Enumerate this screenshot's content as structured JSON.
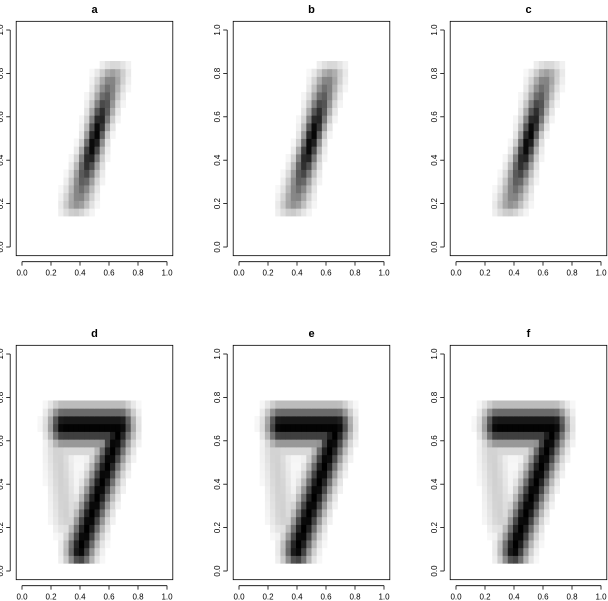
{
  "chart_data": [
    {
      "type": "heatmap",
      "title": "a",
      "digit": "1",
      "xlim": [
        0,
        1
      ],
      "ylim": [
        0,
        1
      ],
      "x_ticks": [
        "0.0",
        "0.2",
        "0.4",
        "0.6",
        "0.8",
        "1.0"
      ],
      "y_ticks": [
        "0.0",
        "0.2",
        "0.4",
        "0.6",
        "0.8",
        "1.0"
      ]
    },
    {
      "type": "heatmap",
      "title": "b",
      "digit": "1",
      "xlim": [
        0,
        1
      ],
      "ylim": [
        0,
        1
      ],
      "x_ticks": [
        "0.0",
        "0.2",
        "0.4",
        "0.6",
        "0.8",
        "1.0"
      ],
      "y_ticks": [
        "0.0",
        "0.2",
        "0.4",
        "0.6",
        "0.8",
        "1.0"
      ]
    },
    {
      "type": "heatmap",
      "title": "c",
      "digit": "1",
      "xlim": [
        0,
        1
      ],
      "ylim": [
        0,
        1
      ],
      "x_ticks": [
        "0.0",
        "0.2",
        "0.4",
        "0.6",
        "0.8",
        "1.0"
      ],
      "y_ticks": [
        "0.0",
        "0.2",
        "0.4",
        "0.6",
        "0.8",
        "1.0"
      ]
    },
    {
      "type": "heatmap",
      "title": "d",
      "digit": "7",
      "xlim": [
        0,
        1
      ],
      "ylim": [
        0,
        1
      ],
      "x_ticks": [
        "0.0",
        "0.2",
        "0.4",
        "0.6",
        "0.8",
        "1.0"
      ],
      "y_ticks": [
        "0.0",
        "0.2",
        "0.4",
        "0.6",
        "0.8",
        "1.0"
      ]
    },
    {
      "type": "heatmap",
      "title": "e",
      "digit": "7",
      "xlim": [
        0,
        1
      ],
      "ylim": [
        0,
        1
      ],
      "x_ticks": [
        "0.0",
        "0.2",
        "0.4",
        "0.6",
        "0.8",
        "1.0"
      ],
      "y_ticks": [
        "0.0",
        "0.2",
        "0.4",
        "0.6",
        "0.8",
        "1.0"
      ]
    },
    {
      "type": "heatmap",
      "title": "f",
      "digit": "7",
      "xlim": [
        0,
        1
      ],
      "ylim": [
        0,
        1
      ],
      "x_ticks": [
        "0.0",
        "0.2",
        "0.4",
        "0.6",
        "0.8",
        "1.0"
      ],
      "y_ticks": [
        "0.0",
        "0.2",
        "0.4",
        "0.6",
        "0.8",
        "1.0"
      ]
    }
  ]
}
